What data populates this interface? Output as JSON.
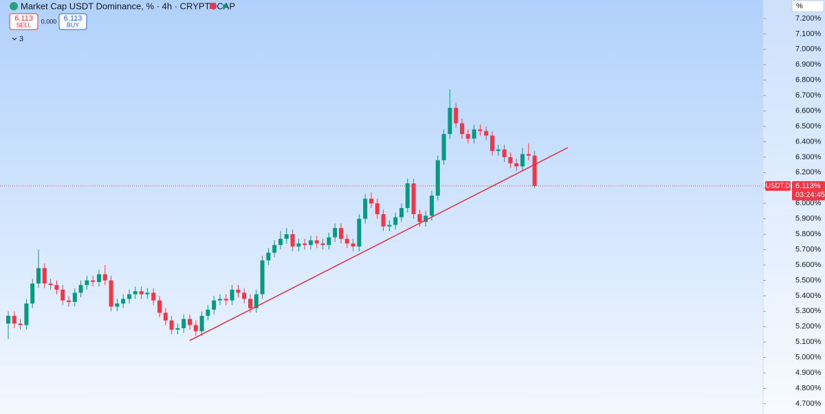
{
  "header": {
    "title": "Market Cap USDT Dominance, % · 4h · CRYPTOCAP",
    "sell_price": "6.113",
    "sell_label": "SELL",
    "spread": "0.000",
    "buy_price": "6.113",
    "buy_label": "BUY",
    "indicators": "3",
    "axis_unit": "%"
  },
  "chart_data": {
    "type": "candlestick",
    "up_color": "#089981",
    "down_color": "#f23645",
    "open": [
      5.22,
      5.27,
      5.22,
      5.21,
      5.35,
      5.48,
      5.58,
      5.48,
      5.47,
      5.44,
      5.37,
      5.36,
      5.42,
      5.47,
      5.5,
      5.49,
      5.54,
      5.5,
      5.33,
      5.35,
      5.38,
      5.41,
      5.43,
      5.41,
      5.42,
      5.37,
      5.29,
      5.24,
      5.18,
      5.19,
      5.25,
      5.21,
      5.17,
      5.27,
      5.31,
      5.37,
      5.38,
      5.37,
      5.44,
      5.42,
      5.38,
      5.32,
      5.41,
      5.63,
      5.68,
      5.73,
      5.77,
      5.8,
      5.72,
      5.74,
      5.73,
      5.76,
      5.74,
      5.73,
      5.78,
      5.84,
      5.77,
      5.74,
      5.72,
      5.9,
      6.03,
      6.0,
      5.93,
      5.85,
      5.86,
      5.91,
      5.97,
      6.13,
      5.93,
      5.88,
      5.92,
      6.05,
      6.28,
      6.45,
      6.62,
      6.52,
      6.45,
      6.42,
      6.48,
      6.47,
      6.44,
      6.34,
      6.35,
      6.3,
      6.26,
      6.24,
      6.32,
      6.31
    ],
    "high": [
      5.3,
      5.3,
      5.25,
      5.38,
      5.51,
      5.7,
      5.61,
      5.51,
      5.5,
      5.47,
      5.4,
      5.45,
      5.5,
      5.53,
      5.53,
      5.57,
      5.6,
      5.53,
      5.38,
      5.41,
      5.44,
      5.46,
      5.46,
      5.45,
      5.45,
      5.4,
      5.32,
      5.27,
      5.22,
      5.28,
      5.28,
      5.24,
      5.3,
      5.34,
      5.4,
      5.41,
      5.41,
      5.47,
      5.47,
      5.45,
      5.41,
      5.44,
      5.66,
      5.71,
      5.76,
      5.82,
      5.84,
      5.83,
      5.77,
      5.77,
      5.79,
      5.79,
      5.77,
      5.81,
      5.87,
      5.87,
      5.8,
      5.77,
      5.93,
      6.06,
      6.07,
      6.03,
      5.96,
      5.89,
      5.94,
      6.0,
      6.16,
      6.16,
      5.96,
      5.95,
      6.08,
      6.31,
      6.48,
      6.74,
      6.65,
      6.55,
      6.48,
      6.51,
      6.51,
      6.5,
      6.47,
      6.38,
      6.38,
      6.33,
      6.29,
      6.36,
      6.39,
      6.34
    ],
    "low": [
      5.12,
      5.19,
      5.18,
      5.18,
      5.32,
      5.45,
      5.45,
      5.44,
      5.41,
      5.34,
      5.33,
      5.33,
      5.39,
      5.44,
      5.46,
      5.46,
      5.47,
      5.3,
      5.3,
      5.32,
      5.35,
      5.38,
      5.38,
      5.38,
      5.34,
      5.26,
      5.21,
      5.15,
      5.15,
      5.16,
      5.18,
      5.14,
      5.14,
      5.24,
      5.28,
      5.34,
      5.34,
      5.34,
      5.39,
      5.35,
      5.29,
      5.29,
      5.38,
      5.6,
      5.65,
      5.7,
      5.74,
      5.69,
      5.69,
      5.7,
      5.7,
      5.71,
      5.7,
      5.7,
      5.75,
      5.74,
      5.71,
      5.69,
      5.69,
      5.87,
      5.97,
      5.9,
      5.82,
      5.82,
      5.83,
      5.88,
      5.94,
      5.9,
      5.85,
      5.85,
      5.89,
      6.02,
      6.25,
      6.42,
      6.49,
      6.42,
      6.39,
      6.39,
      6.44,
      6.41,
      6.31,
      6.31,
      6.27,
      6.23,
      6.21,
      6.21,
      6.28,
      6.1
    ],
    "close": [
      5.27,
      5.22,
      5.21,
      5.35,
      5.48,
      5.58,
      5.48,
      5.47,
      5.44,
      5.37,
      5.36,
      5.42,
      5.47,
      5.5,
      5.49,
      5.54,
      5.5,
      5.33,
      5.35,
      5.38,
      5.41,
      5.43,
      5.41,
      5.42,
      5.37,
      5.29,
      5.24,
      5.18,
      5.19,
      5.25,
      5.21,
      5.17,
      5.27,
      5.31,
      5.37,
      5.38,
      5.37,
      5.44,
      5.42,
      5.38,
      5.32,
      5.41,
      5.63,
      5.68,
      5.73,
      5.77,
      5.8,
      5.72,
      5.74,
      5.73,
      5.76,
      5.74,
      5.73,
      5.78,
      5.84,
      5.77,
      5.74,
      5.72,
      5.9,
      6.03,
      6.0,
      5.93,
      5.85,
      5.86,
      5.91,
      5.97,
      6.13,
      5.93,
      5.88,
      5.92,
      6.05,
      6.28,
      6.45,
      6.62,
      6.52,
      6.45,
      6.42,
      6.48,
      6.47,
      6.44,
      6.34,
      6.35,
      6.3,
      6.26,
      6.24,
      6.32,
      6.31,
      6.113
    ],
    "ylim": [
      4.633,
      7.32
    ],
    "yticks": [
      {
        "value": 4.7,
        "label": "4.700%"
      },
      {
        "value": 4.8,
        "label": "4.800%"
      },
      {
        "value": 4.9,
        "label": "4.900%"
      },
      {
        "value": 5.0,
        "label": "5.000%"
      },
      {
        "value": 5.1,
        "label": "5.100%"
      },
      {
        "value": 5.2,
        "label": "5.200%"
      },
      {
        "value": 5.3,
        "label": "5.300%"
      },
      {
        "value": 5.4,
        "label": "5.400%"
      },
      {
        "value": 5.5,
        "label": "5.500%"
      },
      {
        "value": 5.6,
        "label": "5.600%"
      },
      {
        "value": 5.7,
        "label": "5.700%"
      },
      {
        "value": 5.8,
        "label": "5.800%"
      },
      {
        "value": 5.9,
        "label": "5.900%"
      },
      {
        "value": 6.0,
        "label": "6.000%"
      },
      {
        "value": 6.1,
        "label": "6.100%"
      },
      {
        "value": 6.2,
        "label": "6.200%"
      },
      {
        "value": 6.3,
        "label": "6.300%"
      },
      {
        "value": 6.4,
        "label": "6.400%"
      },
      {
        "value": 6.5,
        "label": "6.500%"
      },
      {
        "value": 6.6,
        "label": "6.600%"
      },
      {
        "value": 6.7,
        "label": "6.700%"
      },
      {
        "value": 6.8,
        "label": "6.800%"
      },
      {
        "value": 6.9,
        "label": "6.900%"
      },
      {
        "value": 7.0,
        "label": "7.000%"
      },
      {
        "value": 7.1,
        "label": "7.100%"
      },
      {
        "value": 7.2,
        "label": "7.200%"
      }
    ],
    "trendline": {
      "color": "#e5283f",
      "x": [
        30,
        92.5
      ],
      "values": [
        5.11,
        6.362
      ]
    },
    "last_price": {
      "value": 6.113,
      "label": "6.113%",
      "symbol": "USDT.D",
      "countdown": "03:24:45",
      "color": "#f23645"
    }
  }
}
